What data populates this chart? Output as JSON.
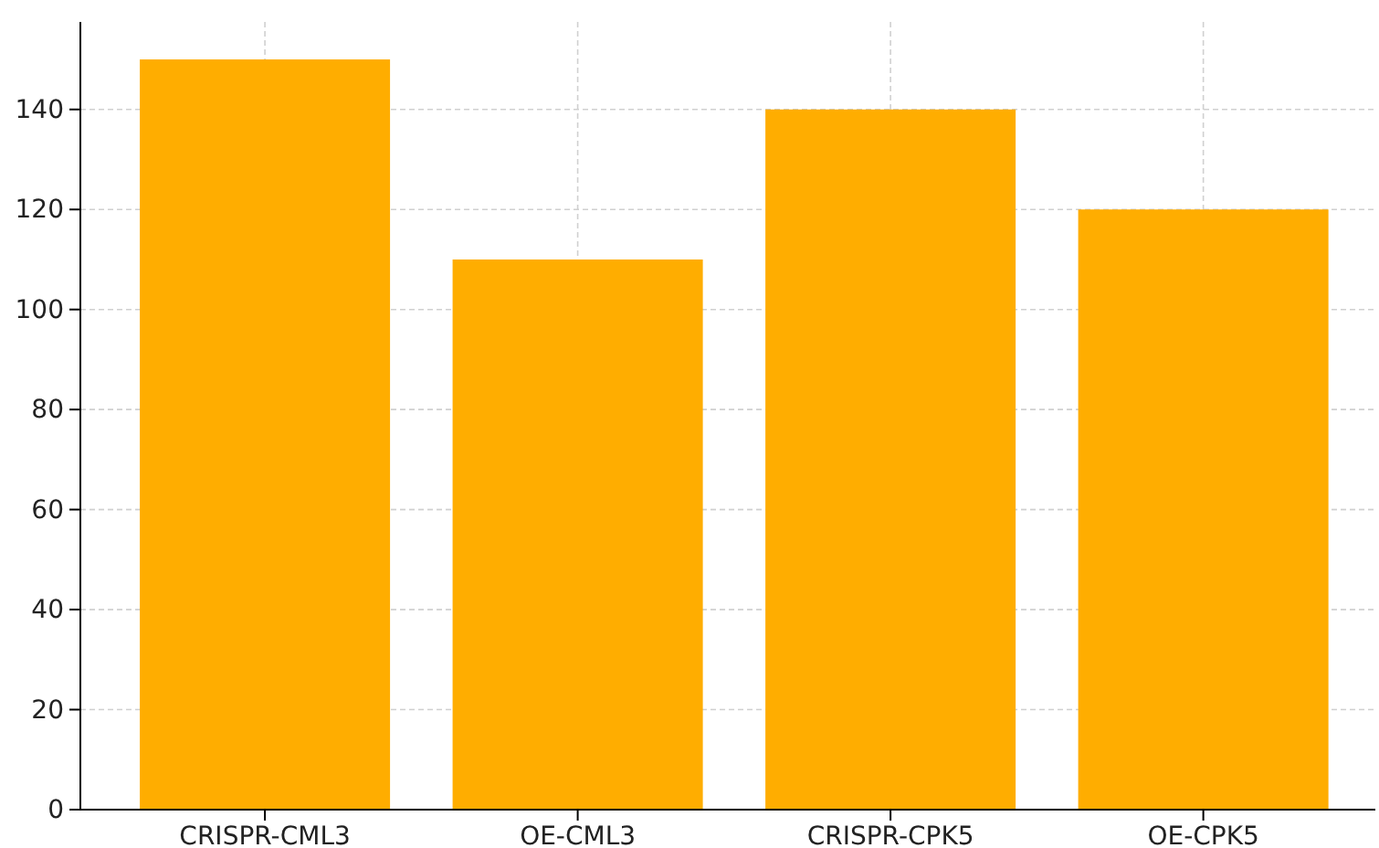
{
  "chart_data": {
    "type": "bar",
    "categories": [
      "CRISPR-CML3",
      "OE-CML3",
      "CRISPR-CPK5",
      "OE-CPK5"
    ],
    "values": [
      150,
      110,
      140,
      120
    ],
    "color": "#ffad00",
    "ylim": [
      0,
      157.5
    ],
    "yticks": [
      0,
      20,
      40,
      60,
      80,
      100,
      120,
      140
    ],
    "grid": true
  }
}
